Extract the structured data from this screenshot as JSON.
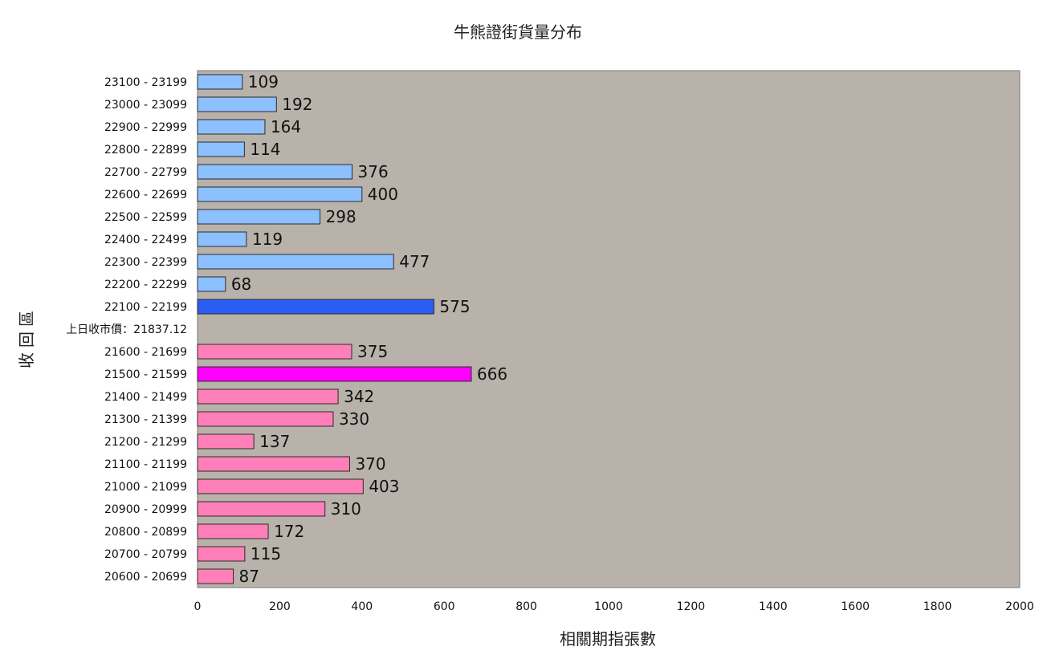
{
  "chart_data": {
    "type": "bar",
    "orientation": "horizontal",
    "title": "牛熊證街貨量分布",
    "xlabel": "相關期指張數",
    "ylabel": "收回區",
    "xlim": [
      0,
      2000
    ],
    "xticks": [
      0,
      200,
      400,
      600,
      800,
      1000,
      1200,
      1400,
      1600,
      1800,
      2000
    ],
    "plot_background": "#b8b2ab",
    "categories": [
      "23100 - 23199",
      "23000 - 23099",
      "22900 - 22999",
      "22800 - 22899",
      "22700 - 22799",
      "22600 - 22699",
      "22500 - 22599",
      "22400 - 22499",
      "22300 - 22399",
      "22200 - 22299",
      "22100 - 22199",
      "上日收市價：21837.12",
      "21600 - 21699",
      "21500 - 21599",
      "21400 - 21499",
      "21300 - 21399",
      "21200 - 21299",
      "21100 - 21199",
      "21000 - 21099",
      "20900 - 20999",
      "20800 - 20899",
      "20700 - 20799",
      "20600 - 20699"
    ],
    "values": [
      109,
      192,
      164,
      114,
      376,
      400,
      298,
      119,
      477,
      68,
      575,
      null,
      375,
      666,
      342,
      330,
      137,
      370,
      403,
      310,
      172,
      115,
      87
    ],
    "colors": [
      "#8dc0ff",
      "#8dc0ff",
      "#8dc0ff",
      "#8dc0ff",
      "#8dc0ff",
      "#8dc0ff",
      "#8dc0ff",
      "#8dc0ff",
      "#8dc0ff",
      "#8dc0ff",
      "#2a5df2",
      null,
      "#ff7fb8",
      "#ff00ff",
      "#ff7fb8",
      "#ff7fb8",
      "#ff7fb8",
      "#ff7fb8",
      "#ff7fb8",
      "#ff7fb8",
      "#ff7fb8",
      "#ff7fb8",
      "#ff7fb8"
    ]
  }
}
